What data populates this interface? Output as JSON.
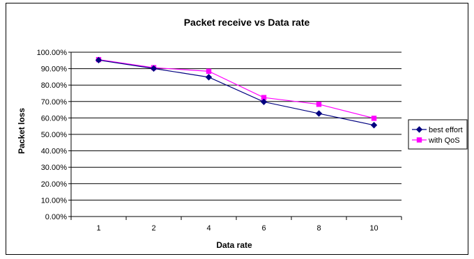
{
  "chart_data": {
    "type": "line",
    "title": "Packet receive vs Data rate",
    "xlabel": "Data rate",
    "ylabel": "Packet loss",
    "categories": [
      "1",
      "2",
      "4",
      "6",
      "8",
      "10"
    ],
    "ylim": [
      0,
      100
    ],
    "yticks": [
      "0.00%",
      "10.00%",
      "20.00%",
      "30.00%",
      "40.00%",
      "50.00%",
      "60.00%",
      "70.00%",
      "80.00%",
      "90.00%",
      "100.00%"
    ],
    "grid": true,
    "legend_position": "right",
    "series": [
      {
        "name": "best effort",
        "values": [
          95.2,
          90.1,
          84.8,
          69.8,
          62.7,
          55.6
        ],
        "color": "#000080",
        "marker": "diamond"
      },
      {
        "name": "with QoS",
        "values": [
          95.5,
          90.6,
          88.4,
          72.4,
          68.3,
          59.8
        ],
        "color": "#ff00ff",
        "marker": "square"
      }
    ]
  }
}
